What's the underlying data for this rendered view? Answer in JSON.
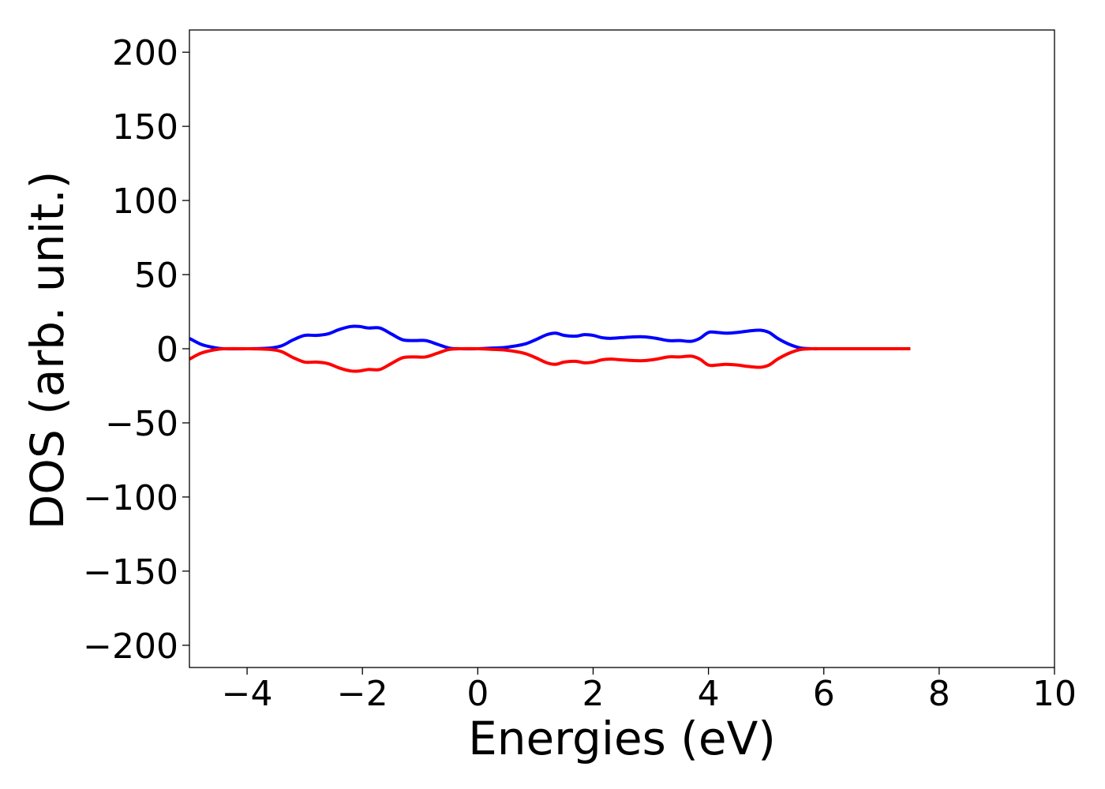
{
  "chart_data": {
    "type": "line",
    "xlabel": "Energies (eV)",
    "ylabel": "DOS (arb. unit.)",
    "xlim": [
      -5,
      10
    ],
    "ylim": [
      -215,
      215
    ],
    "xticks": [
      -4,
      -2,
      0,
      2,
      4,
      6,
      8,
      10
    ],
    "yticks": [
      200,
      150,
      100,
      50,
      0,
      -50,
      -100,
      -150,
      -200
    ],
    "xtick_labels": [
      "−4",
      "−2",
      "0",
      "2",
      "4",
      "6",
      "8",
      "10"
    ],
    "ytick_labels": [
      "200",
      "150",
      "100",
      "50",
      "0",
      "−50",
      "−100",
      "−150",
      "−200"
    ],
    "grid": false,
    "series": [
      {
        "color": "#0000ff",
        "x": [
          -5.0,
          -4.8,
          -4.6,
          -4.4,
          -4.0,
          -3.6,
          -3.4,
          -3.2,
          -3.0,
          -2.8,
          -2.6,
          -2.4,
          -2.2,
          -2.05,
          -1.9,
          -1.7,
          -1.5,
          -1.3,
          -1.1,
          -0.9,
          -0.7,
          -0.5,
          -0.3,
          0.0,
          0.3,
          0.5,
          0.8,
          1.0,
          1.2,
          1.35,
          1.5,
          1.7,
          1.85,
          2.0,
          2.15,
          2.3,
          2.5,
          2.7,
          2.9,
          3.1,
          3.3,
          3.5,
          3.7,
          3.85,
          4.0,
          4.15,
          4.3,
          4.5,
          4.7,
          4.9,
          5.05,
          5.2,
          5.4,
          5.6,
          5.8,
          6.0,
          6.5,
          7.0,
          7.5
        ],
        "y": [
          7,
          3,
          1,
          0,
          0,
          0.5,
          2,
          6,
          9,
          9,
          10,
          13,
          15,
          15,
          14,
          14,
          10,
          6,
          5.5,
          5.5,
          3,
          0.5,
          0,
          0,
          0.5,
          1,
          3,
          6,
          9.5,
          10.5,
          9,
          8.5,
          9.5,
          9,
          7.5,
          7,
          7.5,
          8,
          8,
          7,
          5.5,
          5.5,
          5,
          7,
          11,
          11,
          10.5,
          11,
          12,
          12.5,
          11,
          7,
          3,
          0.5,
          0,
          0,
          0,
          0,
          0
        ]
      },
      {
        "color": "#ff0000",
        "x": [
          -5.0,
          -4.8,
          -4.6,
          -4.4,
          -4.0,
          -3.6,
          -3.4,
          -3.2,
          -3.0,
          -2.8,
          -2.6,
          -2.4,
          -2.2,
          -2.05,
          -1.9,
          -1.7,
          -1.5,
          -1.3,
          -1.1,
          -0.9,
          -0.7,
          -0.5,
          -0.3,
          0.0,
          0.3,
          0.5,
          0.8,
          1.0,
          1.2,
          1.35,
          1.5,
          1.7,
          1.85,
          2.0,
          2.15,
          2.3,
          2.5,
          2.7,
          2.9,
          3.1,
          3.3,
          3.5,
          3.7,
          3.85,
          4.0,
          4.15,
          4.3,
          4.5,
          4.7,
          4.9,
          5.05,
          5.2,
          5.4,
          5.6,
          5.8,
          6.0,
          6.5,
          7.0,
          7.5
        ],
        "y": [
          -7,
          -3,
          -1,
          0,
          0,
          -0.5,
          -2,
          -6,
          -9,
          -9,
          -10,
          -13,
          -15,
          -15,
          -14,
          -14,
          -10,
          -6,
          -5.5,
          -5.5,
          -3,
          -0.5,
          0,
          0,
          -0.5,
          -1,
          -3,
          -6,
          -9.5,
          -10.5,
          -9,
          -8.5,
          -9.5,
          -9,
          -7.5,
          -7,
          -7.5,
          -8,
          -8,
          -7,
          -5.5,
          -5.5,
          -5,
          -7,
          -11,
          -11,
          -10.5,
          -11,
          -12,
          -12.5,
          -11,
          -7,
          -3,
          -0.5,
          0,
          0,
          0,
          0,
          0
        ]
      }
    ]
  }
}
